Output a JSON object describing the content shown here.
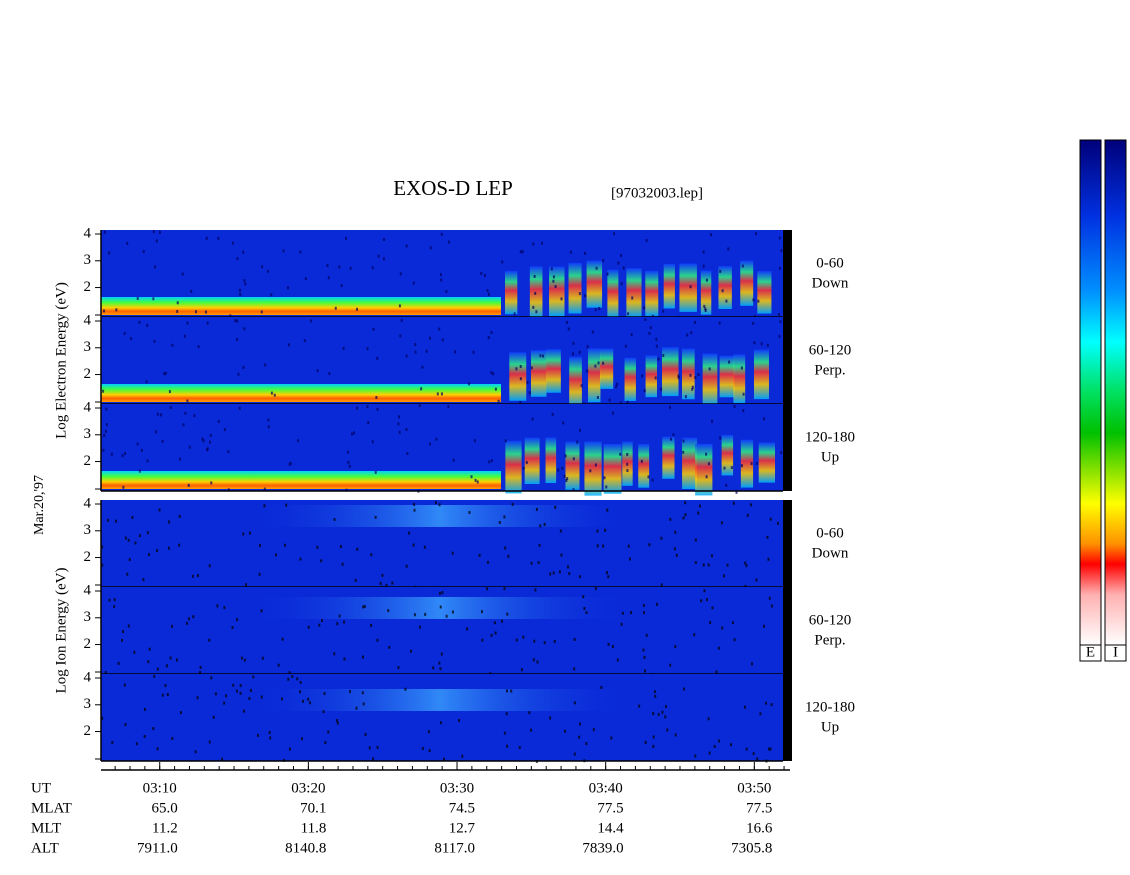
{
  "chart_data": {
    "type": "spectrogram",
    "title": "EXOS-D LEP",
    "subtitle": "[97032003.lep]",
    "date_label": "Mar.20,'97",
    "groups": [
      {
        "ylabel": "Log Electron Energy (eV)",
        "species": "electron"
      },
      {
        "ylabel": "Log Ion Energy (eV)",
        "species": "ion"
      }
    ],
    "panels": [
      {
        "label": "0-60",
        "sublabel": "Down"
      },
      {
        "label": "60-120",
        "sublabel": "Perp."
      },
      {
        "label": "120-180",
        "sublabel": "Up"
      }
    ],
    "ylim": [
      0.9,
      4.15
    ],
    "yticks": [
      2,
      3,
      4
    ],
    "xlim": [
      186.05,
      232.4
    ],
    "xticks": [
      {
        "value": 190,
        "label": "03:10"
      },
      {
        "value": 200,
        "label": "03:20"
      },
      {
        "value": 210,
        "label": "03:30"
      },
      {
        "value": 220,
        "label": "03:40"
      },
      {
        "value": 230,
        "label": "03:50"
      }
    ],
    "xtick_row_name": "UT",
    "ephemeris": [
      {
        "name": "MLAT",
        "values": [
          "65.0",
          "70.1",
          "74.5",
          "77.5",
          "77.5"
        ]
      },
      {
        "name": "MLT",
        "values": [
          "11.2",
          "11.8",
          "12.7",
          "14.4",
          "16.6"
        ]
      },
      {
        "name": "ALT",
        "values": [
          "7911.0",
          "8140.8",
          "8117.0",
          "7839.0",
          "7305.8"
        ]
      }
    ],
    "colorbars": [
      "E",
      "I"
    ]
  }
}
